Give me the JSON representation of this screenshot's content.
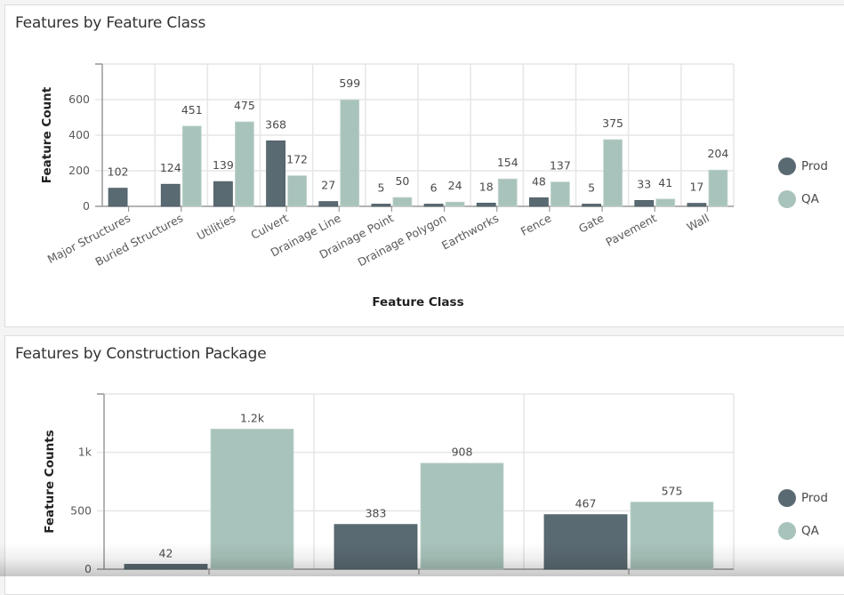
{
  "colors": {
    "prod": "#5a6a72",
    "qa": "#a8c3bb",
    "grid": "#e6e6e6",
    "axis": "#9a9a9a"
  },
  "panels": [
    {
      "title": "Features by Feature Class"
    },
    {
      "title": "Features by Construction Package"
    }
  ],
  "legend": {
    "items": [
      {
        "label": "Prod",
        "color": "#5a6a72"
      },
      {
        "label": "QA",
        "color": "#a8c3bb"
      }
    ]
  },
  "chart_data": [
    {
      "type": "bar",
      "title": "Features by Feature Class",
      "xlabel": "Feature Class",
      "ylabel": "Feature Count",
      "ylim": [
        0,
        800
      ],
      "yticks": [
        0,
        200,
        400,
        600
      ],
      "ytick_labels": [
        "0",
        "200",
        "400",
        "600"
      ],
      "grid": true,
      "legend_position": "right",
      "categories": [
        "Major Structures",
        "Buried Structures",
        "Utilities",
        "Culvert",
        "Drainage Line",
        "Drainage Point",
        "Drainage Polygon",
        "Earthworks",
        "Fence",
        "Gate",
        "Pavement",
        "Wall"
      ],
      "series": [
        {
          "name": "Prod",
          "values": [
            102,
            124,
            139,
            368,
            27,
            5,
            6,
            18,
            48,
            5,
            33,
            17
          ],
          "labels": [
            "102",
            "124",
            "139",
            "368",
            "27",
            "5",
            "6",
            "18",
            "48",
            "5",
            "33",
            "17"
          ]
        },
        {
          "name": "QA",
          "values": [
            null,
            451,
            475,
            172,
            599,
            50,
            24,
            154,
            137,
            375,
            41,
            204
          ],
          "labels": [
            "",
            "451",
            "475",
            "172",
            "599",
            "50",
            "24",
            "154",
            "137",
            "375",
            "41",
            "204"
          ]
        }
      ]
    },
    {
      "type": "bar",
      "title": "Features by Construction Package",
      "xlabel": "",
      "ylabel": "Feature Counts",
      "ylim": [
        0,
        1500
      ],
      "yticks": [
        0,
        500,
        1000
      ],
      "ytick_labels": [
        "0",
        "500",
        "1k"
      ],
      "grid": true,
      "legend_position": "right",
      "categories": [
        "",
        "",
        ""
      ],
      "series": [
        {
          "name": "Prod",
          "values": [
            42,
            383,
            467
          ],
          "labels": [
            "42",
            "383",
            "467"
          ]
        },
        {
          "name": "QA",
          "values": [
            1200,
            908,
            575
          ],
          "labels": [
            "1.2k",
            "908",
            "575"
          ]
        }
      ]
    }
  ]
}
